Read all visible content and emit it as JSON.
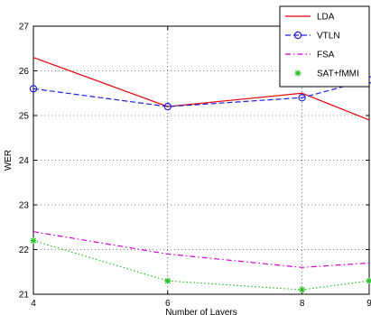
{
  "chart_data": {
    "type": "line",
    "title": "",
    "xlabel": "Number of Layers",
    "ylabel": "WER",
    "x": [
      4,
      6,
      8,
      9
    ],
    "xlim": [
      4,
      9
    ],
    "ylim": [
      21,
      27
    ],
    "xticks": [
      "4",
      "6",
      "8",
      "9"
    ],
    "yticks": [
      "21",
      "22",
      "23",
      "24",
      "25",
      "26",
      "27"
    ],
    "grid": true,
    "legend_position": "top-right",
    "series": [
      {
        "name": "LDA",
        "values": [
          26.3,
          25.2,
          25.5,
          24.9
        ],
        "color": "#e8000b",
        "dash": "solid",
        "marker": "none"
      },
      {
        "name": "VTLN",
        "values": [
          25.6,
          25.2,
          25.4,
          25.8
        ],
        "color": "#1f1fe0",
        "dash": "dashed",
        "marker": "circle"
      },
      {
        "name": "FSA",
        "values": [
          22.4,
          21.9,
          21.6,
          21.7
        ],
        "color": "#d400d4",
        "dash": "dashdot",
        "marker": "none"
      },
      {
        "name": "SAT+fMMI",
        "values": [
          22.2,
          21.3,
          21.1,
          21.3
        ],
        "color": "#22c222",
        "dash": "dotted",
        "marker": "star"
      }
    ]
  }
}
